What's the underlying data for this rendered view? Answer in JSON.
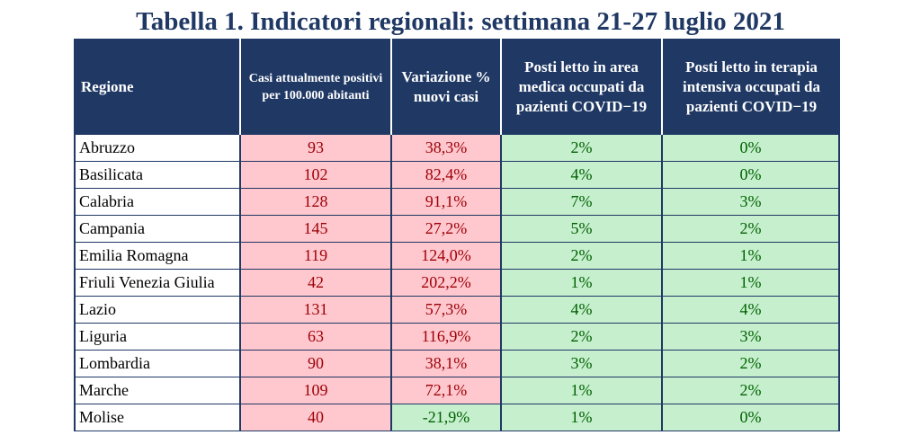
{
  "title": "Tabella 1. Indicatori regionali: settimana 21-27 luglio 2021",
  "headers": {
    "regione": "Regione",
    "casi": "Casi attualmente positivi per 100.000 abitanti",
    "variazione": "Variazione % nuovi casi",
    "area_medica": "Posti letto in area medica occupati da pazienti COVID−19",
    "terapia_intensiva": "Posti letto in terapia intensiva occupati da pazienti COVID−19"
  },
  "rows": [
    {
      "regione": "Abruzzo",
      "casi": "93",
      "variazione": "38,3%",
      "area_medica": "2%",
      "terapia_intensiva": "0%",
      "var_status": "red"
    },
    {
      "regione": "Basilicata",
      "casi": "102",
      "variazione": "82,4%",
      "area_medica": "4%",
      "terapia_intensiva": "0%",
      "var_status": "red"
    },
    {
      "regione": "Calabria",
      "casi": "128",
      "variazione": "91,1%",
      "area_medica": "7%",
      "terapia_intensiva": "3%",
      "var_status": "red"
    },
    {
      "regione": "Campania",
      "casi": "145",
      "variazione": "27,2%",
      "area_medica": "5%",
      "terapia_intensiva": "2%",
      "var_status": "red"
    },
    {
      "regione": "Emilia Romagna",
      "casi": "119",
      "variazione": "124,0%",
      "area_medica": "2%",
      "terapia_intensiva": "1%",
      "var_status": "red"
    },
    {
      "regione": "Friuli Venezia Giulia",
      "casi": "42",
      "variazione": "202,2%",
      "area_medica": "1%",
      "terapia_intensiva": "1%",
      "var_status": "red"
    },
    {
      "regione": "Lazio",
      "casi": "131",
      "variazione": "57,3%",
      "area_medica": "4%",
      "terapia_intensiva": "4%",
      "var_status": "red"
    },
    {
      "regione": "Liguria",
      "casi": "63",
      "variazione": "116,9%",
      "area_medica": "2%",
      "terapia_intensiva": "3%",
      "var_status": "red"
    },
    {
      "regione": "Lombardia",
      "casi": "90",
      "variazione": "38,1%",
      "area_medica": "3%",
      "terapia_intensiva": "2%",
      "var_status": "red"
    },
    {
      "regione": "Marche",
      "casi": "109",
      "variazione": "72,1%",
      "area_medica": "1%",
      "terapia_intensiva": "2%",
      "var_status": "red"
    },
    {
      "regione": "Molise",
      "casi": "40",
      "variazione": "-21,9%",
      "area_medica": "1%",
      "terapia_intensiva": "0%",
      "var_status": "green"
    }
  ],
  "colors": {
    "header_bg": "#1f3864",
    "red_fill": "#ffc7ce",
    "red_text": "#9c0006",
    "green_fill": "#c6efce",
    "green_text": "#006100"
  }
}
